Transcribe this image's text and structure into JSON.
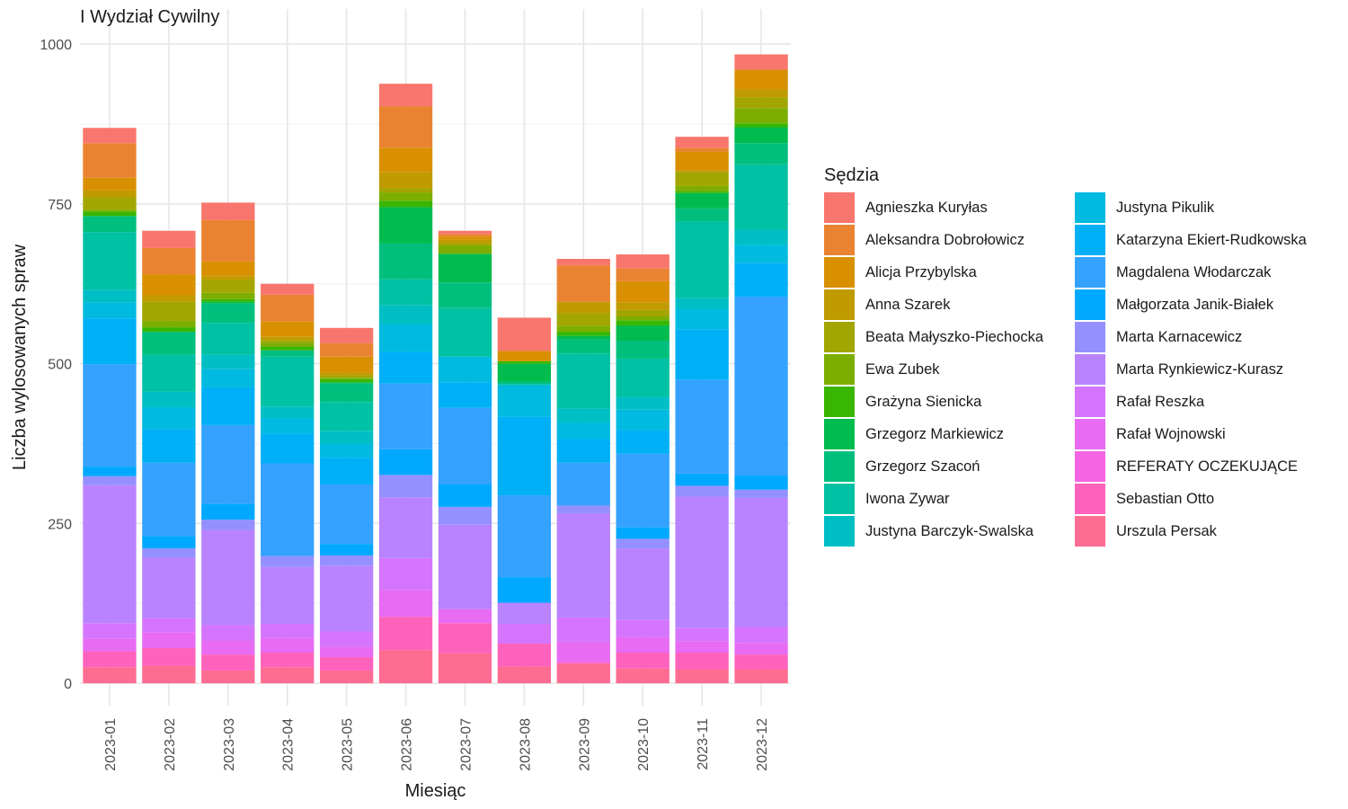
{
  "chart_data": {
    "type": "bar",
    "stacked": true,
    "title": "I Wydział Cywilny",
    "xlabel": "Miesiąc",
    "ylabel": "Liczba wylosowanych spraw",
    "legend_title": "Sędzia",
    "legend_position": "right",
    "ylim": [
      -35,
      1055
    ],
    "yticks": [
      0,
      250,
      500,
      750,
      1000
    ],
    "grid": true,
    "categories": [
      "2023-01",
      "2023-02",
      "2023-03",
      "2023-04",
      "2023-05",
      "2023-06",
      "2023-07",
      "2023-08",
      "2023-09",
      "2023-10",
      "2023-11",
      "2023-12"
    ],
    "series": [
      {
        "name": "Agnieszka Kuryłas",
        "color": "#F8766D",
        "values": [
          24,
          27,
          27,
          17,
          24,
          35,
          5,
          52,
          10,
          22,
          17,
          24
        ]
      },
      {
        "name": "Aleksandra Dobrołowicz",
        "color": "#EA8331",
        "values": [
          54,
          41,
          65,
          42,
          21,
          65,
          4,
          0,
          57,
          20,
          6,
          0
        ]
      },
      {
        "name": "Alicja Przybylska",
        "color": "#D89000",
        "values": [
          20,
          33,
          23,
          24,
          25,
          38,
          5,
          16,
          0,
          33,
          30,
          31
        ]
      },
      {
        "name": "Anna Szarek",
        "color": "#C09B00",
        "values": [
          10,
          10,
          6,
          5,
          4,
          25,
          6,
          0,
          18,
          12,
          2,
          12
        ]
      },
      {
        "name": "Beata Małyszko-Piechocka",
        "color": "#A3A500",
        "values": [
          20,
          30,
          20,
          4,
          4,
          7,
          3,
          0,
          20,
          10,
          22,
          17
        ]
      },
      {
        "name": "Ewa Zubek",
        "color": "#7CAE00",
        "values": [
          3,
          10,
          10,
          6,
          2,
          13,
          13,
          0,
          9,
          6,
          8,
          24
        ]
      },
      {
        "name": "Grażyna Sienicka",
        "color": "#39B600",
        "values": [
          7,
          7,
          4,
          6,
          5,
          10,
          0,
          4,
          6,
          8,
          3,
          6
        ]
      },
      {
        "name": "Grzegorz Markiewicz",
        "color": "#00BB4E",
        "values": [
          0,
          0,
          3,
          0,
          2,
          57,
          45,
          28,
          6,
          24,
          24,
          25
        ]
      },
      {
        "name": "Grzegorz Szacoń",
        "color": "#00BF7D",
        "values": [
          25,
          36,
          30,
          10,
          29,
          56,
          40,
          4,
          22,
          28,
          20,
          33
        ]
      },
      {
        "name": "Iwona Zywar",
        "color": "#00C1A3",
        "values": [
          90,
          58,
          50,
          78,
          45,
          40,
          76,
          0,
          86,
          60,
          120,
          103
        ]
      },
      {
        "name": "Justyna Barczyk-Swalska",
        "color": "#00BFC4",
        "values": [
          20,
          24,
          22,
          18,
          20,
          30,
          0,
          3,
          22,
          20,
          17,
          23
        ]
      },
      {
        "name": "Justyna Pikulik",
        "color": "#00BAE0",
        "values": [
          25,
          34,
          29,
          24,
          22,
          43,
          40,
          48,
          26,
          32,
          32,
          28
        ]
      },
      {
        "name": "Katarzyna Ekiert-Rudkowska",
        "color": "#00B0F6",
        "values": [
          72,
          53,
          59,
          47,
          42,
          50,
          40,
          123,
          37,
          37,
          79,
          53
        ]
      },
      {
        "name": "Magdalena Włodarczak",
        "color": "#35A2FF",
        "values": [
          160,
          115,
          123,
          145,
          93,
          103,
          120,
          128,
          67,
          115,
          147,
          280
        ]
      },
      {
        "name": "Małgorzata Janik-Białek",
        "color": "#00A9FF",
        "values": [
          15,
          19,
          25,
          0,
          18,
          40,
          35,
          40,
          0,
          18,
          19,
          22
        ]
      },
      {
        "name": "Marta Karnacewicz",
        "color": "#9590FF",
        "values": [
          14,
          14,
          16,
          17,
          16,
          35,
          28,
          0,
          12,
          15,
          17,
          13
        ]
      },
      {
        "name": "Marta Rynkiewicz-Kurasz",
        "color": "#B983FF",
        "values": [
          216,
          95,
          149,
          89,
          103,
          95,
          132,
          33,
          163,
          112,
          205,
          202
        ]
      },
      {
        "name": "Rafał Reszka",
        "color": "#D575FE",
        "values": [
          24,
          22,
          24,
          22,
          24,
          50,
          0,
          31,
          38,
          27,
          21,
          25
        ]
      },
      {
        "name": "Rafał Wojnowski",
        "color": "#E76BF3",
        "values": [
          20,
          25,
          22,
          23,
          16,
          42,
          22,
          0,
          32,
          24,
          18,
          18
        ]
      },
      {
        "name": "REFERATY OCZEKUJĄCE",
        "color": "#F564E3",
        "values": [
          0,
          0,
          0,
          0,
          0,
          0,
          0,
          0,
          0,
          0,
          0,
          0
        ]
      },
      {
        "name": "Sebastian Otto",
        "color": "#FF62BC",
        "values": [
          25,
          28,
          25,
          23,
          21,
          52,
          47,
          36,
          3,
          25,
          26,
          23
        ]
      },
      {
        "name": "Urszula Persak",
        "color": "#FF6C91",
        "values": [
          25,
          27,
          20,
          25,
          20,
          52,
          47,
          26,
          30,
          23,
          22,
          22
        ]
      }
    ]
  }
}
